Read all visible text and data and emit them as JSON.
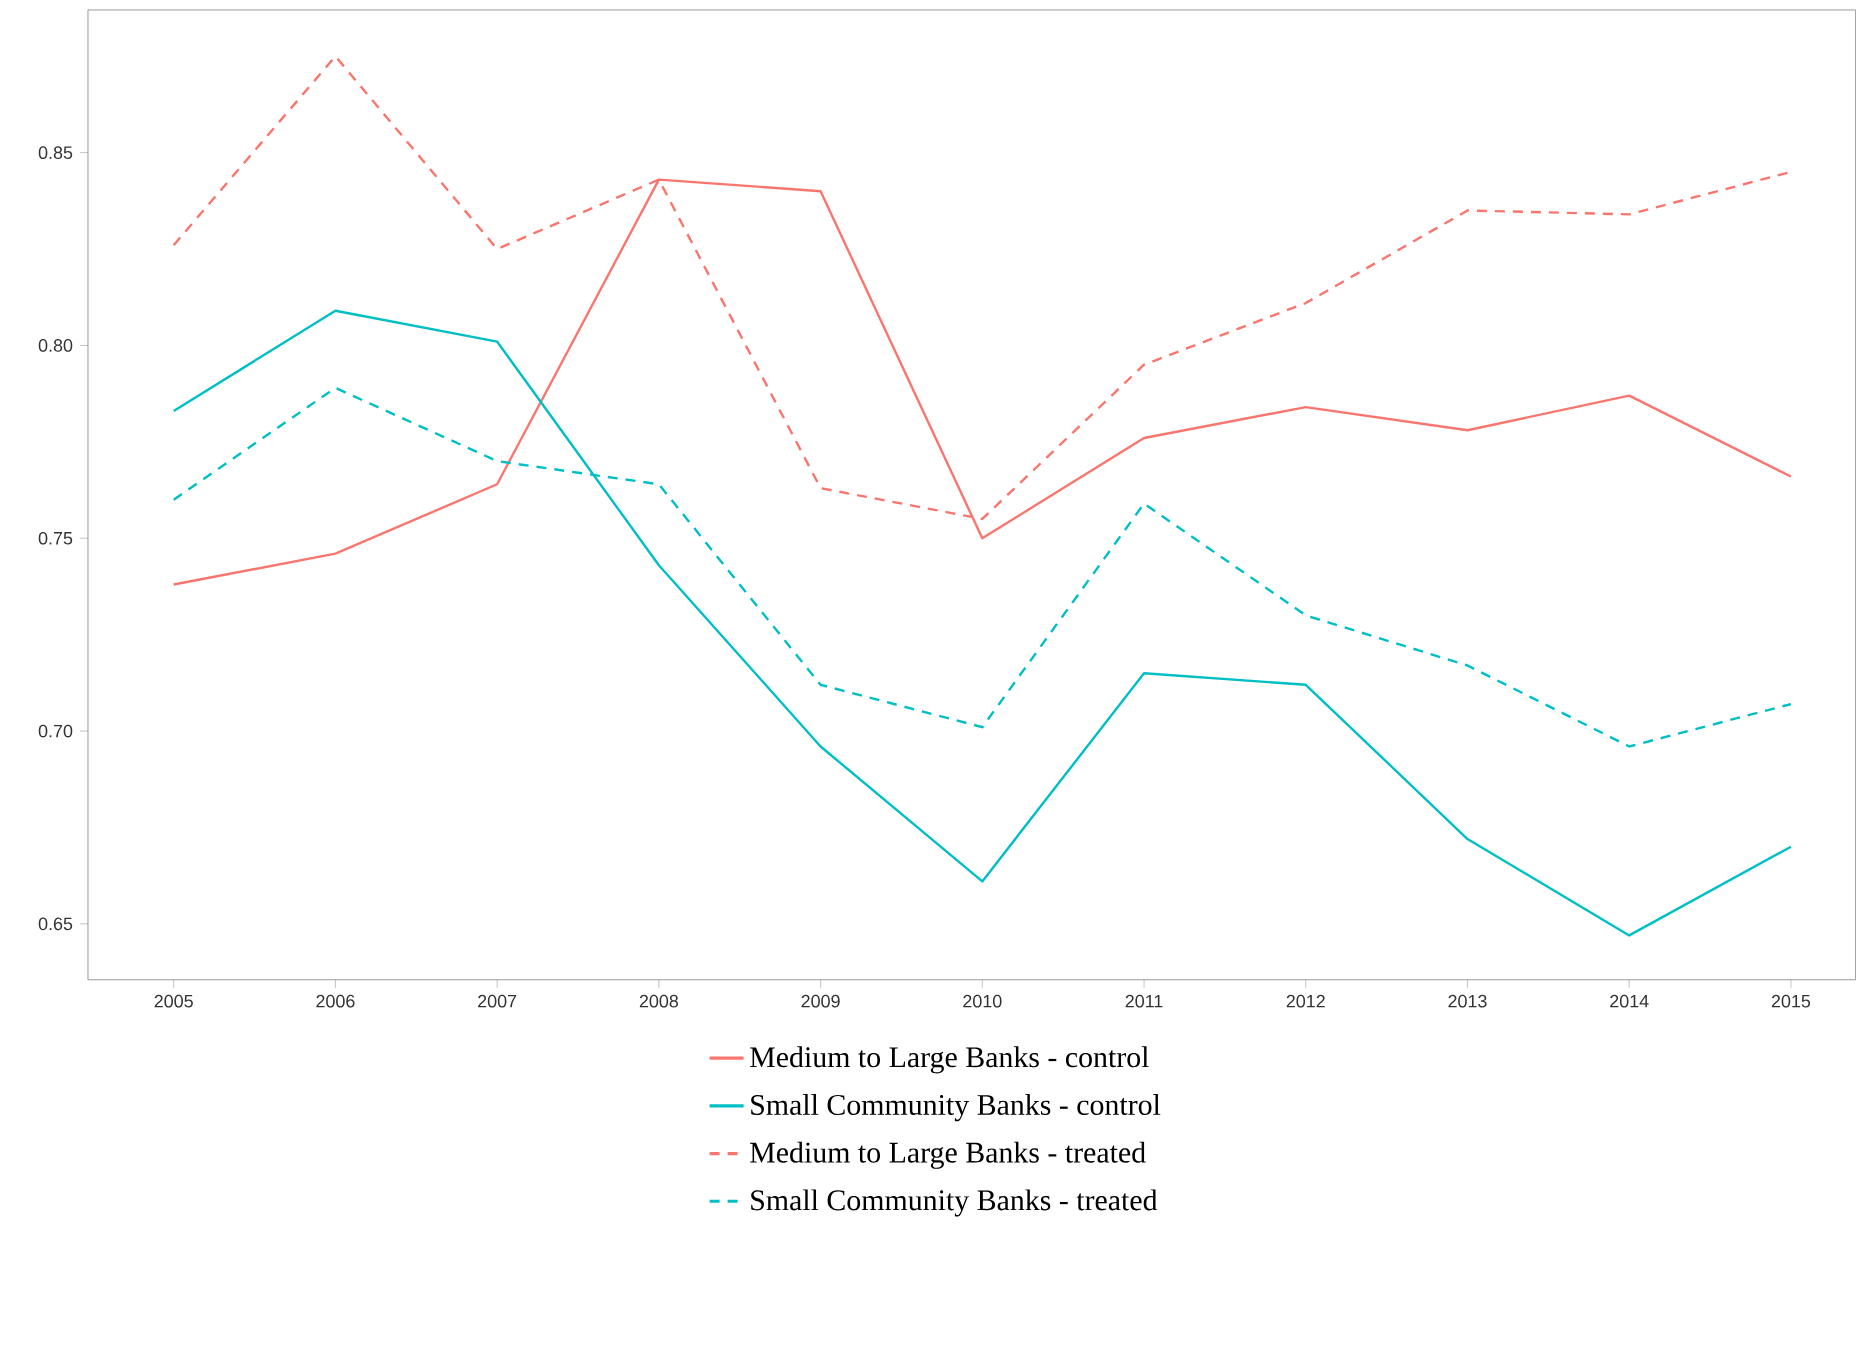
{
  "chart_data": {
    "type": "line",
    "x": [
      2005,
      2006,
      2007,
      2008,
      2009,
      2010,
      2011,
      2012,
      2013,
      2014,
      2015
    ],
    "xlim": [
      2004.47,
      2015.4
    ],
    "xticks": [
      2005,
      2006,
      2007,
      2008,
      2009,
      2010,
      2011,
      2012,
      2013,
      2014,
      2015
    ],
    "ylim": [
      0.6355,
      0.887
    ],
    "yticks": [
      {
        "value": 0.65,
        "label": "0.65"
      },
      {
        "value": 0.7,
        "label": "0.70"
      },
      {
        "value": 0.75,
        "label": "0.75"
      },
      {
        "value": 0.8,
        "label": "0.80"
      },
      {
        "value": 0.85,
        "label": "0.85"
      }
    ],
    "grid": false,
    "legend": "bottom",
    "marker": "none",
    "series": [
      {
        "name": "Medium to Large Banks - control",
        "color": "#f8766d",
        "line_style": "solid",
        "values": [
          0.738,
          0.746,
          0.764,
          0.843,
          0.84,
          0.75,
          0.776,
          0.784,
          0.778,
          0.787,
          0.766
        ]
      },
      {
        "name": "Small Community Banks - control",
        "color": "#00bfc4",
        "line_style": "solid",
        "values": [
          0.783,
          0.809,
          0.801,
          0.743,
          0.696,
          0.661,
          0.715,
          0.712,
          0.672,
          0.647,
          0.67
        ]
      },
      {
        "name": "Medium to Large Banks - treated",
        "color": "#f8766d",
        "line_style": "dashed",
        "values": [
          0.826,
          0.875,
          0.825,
          0.843,
          0.763,
          0.755,
          0.795,
          0.811,
          0.835,
          0.834,
          0.845
        ]
      },
      {
        "name": "Small Community Banks - treated",
        "color": "#00bfc4",
        "line_style": "dashed",
        "values": [
          0.76,
          0.789,
          0.77,
          0.764,
          0.712,
          0.701,
          0.759,
          0.73,
          0.717,
          0.696,
          0.707
        ]
      }
    ]
  }
}
